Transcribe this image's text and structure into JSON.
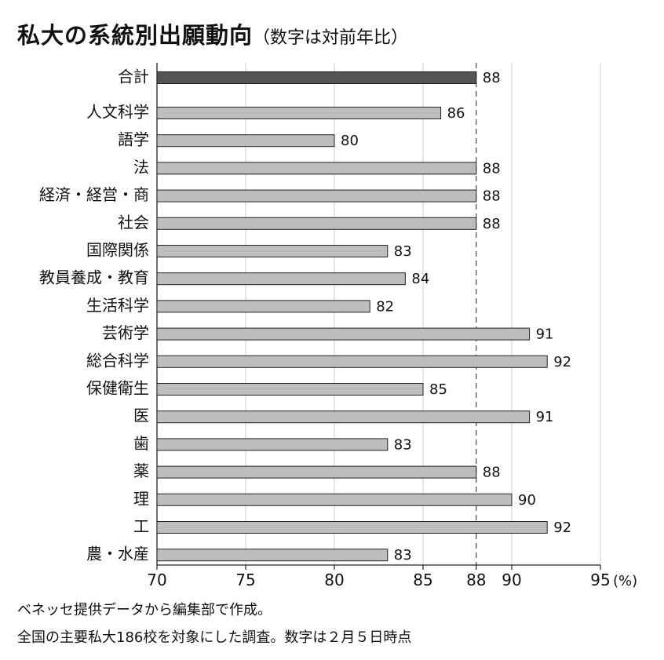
{
  "title": "私大の系統別出願動向",
  "subtitle": "（数字は対前年比）",
  "notes": [
    "ベネッセ提供データから編集部で作成。",
    "全国の主要私大186校を対象にした調査。数字は２月５日時点"
  ],
  "colors": {
    "total_bar": "#555555",
    "bar": "#bdbdbd",
    "bar_stroke": "#222222",
    "reference_line": "#555555",
    "grid": "#cccccc"
  },
  "chart_data": {
    "type": "bar",
    "orientation": "horizontal",
    "title": "私大の系統別出願動向",
    "subtitle": "（数字は対前年比）",
    "unit": "(%)",
    "categories": [
      "合計",
      "人文科学",
      "語学",
      "法",
      "経済・経営・商",
      "社会",
      "国際関係",
      "教員養成・教育",
      "生活科学",
      "芸術学",
      "総合科学",
      "保健衛生",
      "医",
      "歯",
      "薬",
      "理",
      "工",
      "農・水産"
    ],
    "values": [
      88,
      86,
      80,
      88,
      88,
      88,
      83,
      84,
      82,
      91,
      92,
      85,
      91,
      83,
      88,
      90,
      92,
      83
    ],
    "data_labels": [
      "88",
      "86",
      "80",
      "88",
      "88",
      "88",
      "83",
      "84",
      "82",
      "91",
      "92",
      "85",
      "91",
      "83",
      "88",
      "90",
      "92",
      "83"
    ],
    "xlim": [
      70,
      95
    ],
    "x_ticks": [
      "70",
      "75",
      "80",
      "85",
      "88",
      "90",
      "95"
    ],
    "x_tick_values": [
      70,
      75,
      80,
      85,
      88,
      90,
      95
    ],
    "reference_line": 88,
    "grid": true,
    "legend": "none"
  }
}
